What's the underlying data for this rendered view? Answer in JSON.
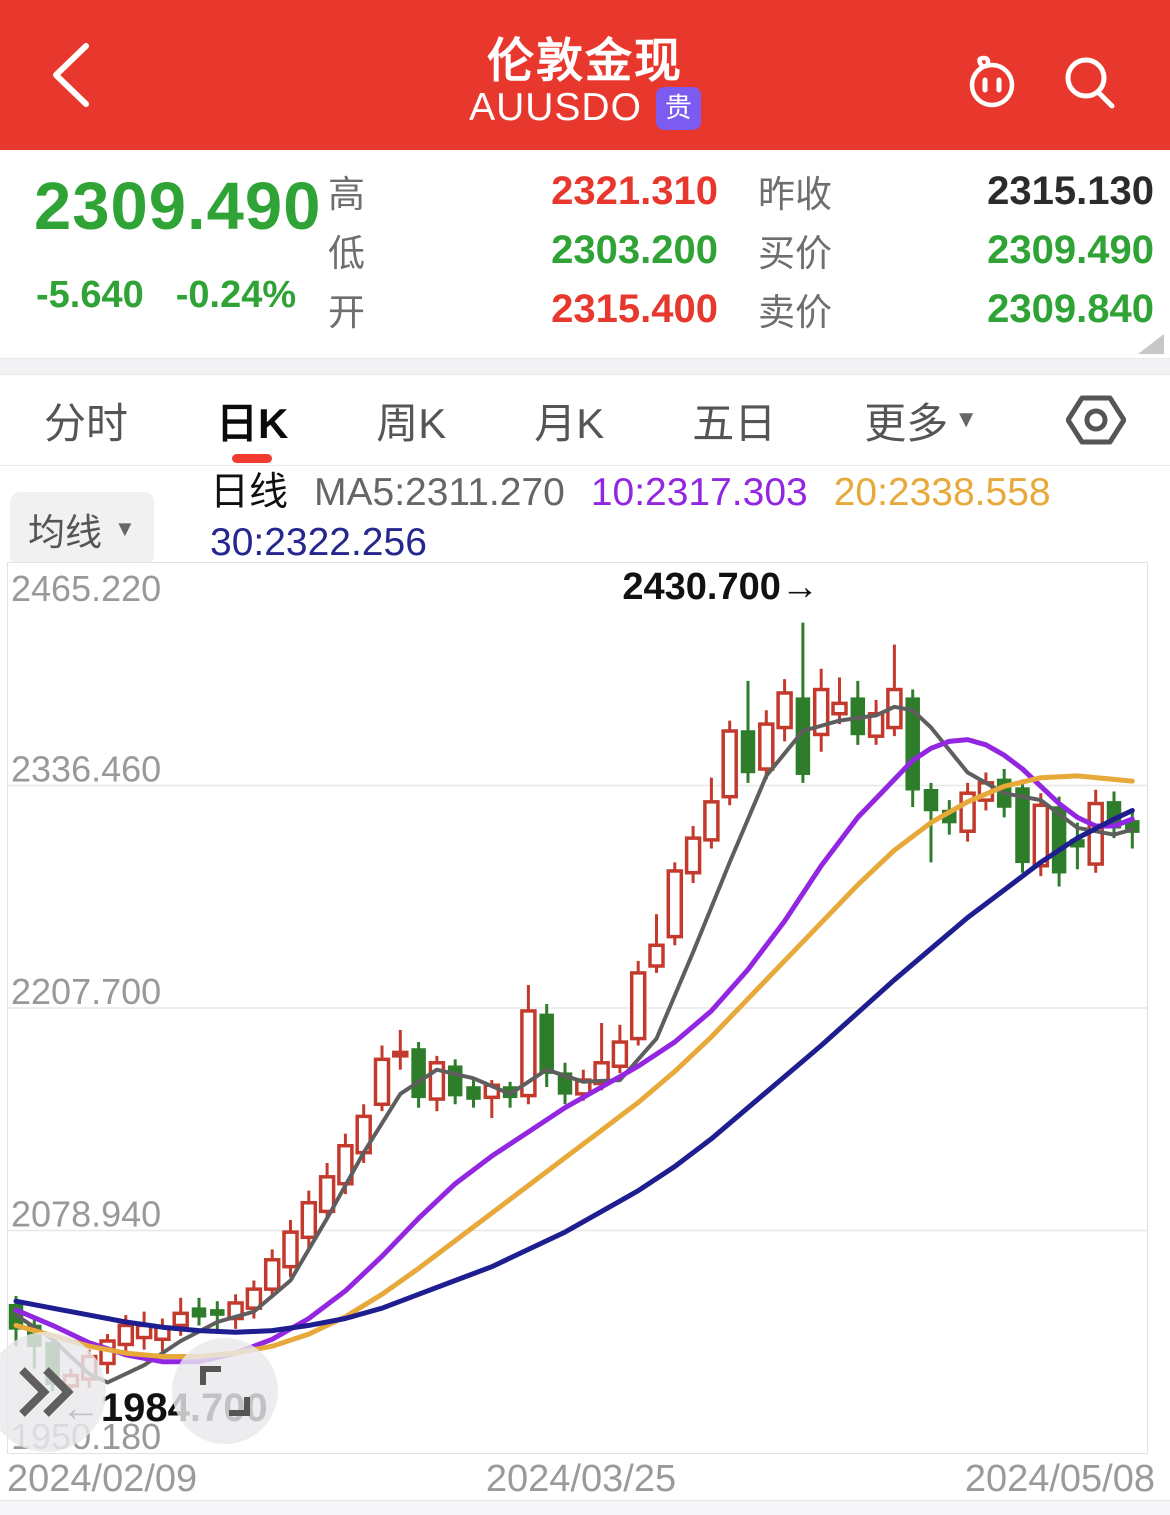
{
  "colors": {
    "header_bg": "#E8382E",
    "badge_bg": "#7C5CF0",
    "up": "#E8382E",
    "down": "#2FA336",
    "flat": "#2B2B2B",
    "candle_up": "#C33A2D",
    "candle_down": "#2E7D2A",
    "grid": "#E8E8E8",
    "axis_text": "#999999",
    "annotation": "#111111"
  },
  "header": {
    "title": "伦敦金现",
    "symbol": "AUUSDO",
    "badge": "贵"
  },
  "quote": {
    "last": "2309.490",
    "change": "-5.640",
    "change_pct": "-0.24%",
    "trend": "down",
    "mid_fields": [
      {
        "label": "高",
        "value": "2321.310",
        "trend": "up"
      },
      {
        "label": "低",
        "value": "2303.200",
        "trend": "down"
      },
      {
        "label": "开",
        "value": "2315.400",
        "trend": "up"
      }
    ],
    "right_fields": [
      {
        "label": "昨收",
        "value": "2315.130",
        "trend": "flat"
      },
      {
        "label": "买价",
        "value": "2309.490",
        "trend": "down"
      },
      {
        "label": "卖价",
        "value": "2309.840",
        "trend": "down"
      }
    ]
  },
  "tabs": {
    "items": [
      "分时",
      "日K",
      "周K",
      "月K",
      "五日",
      "更多"
    ],
    "active": "日K",
    "caret_on": "更多"
  },
  "legend": {
    "button": "均线",
    "period": "日线",
    "ma_items": [
      {
        "label": "MA5:2311.270",
        "color": "#666666"
      },
      {
        "label": "10:2317.303",
        "color": "#9326E0"
      },
      {
        "label": "20:2338.558",
        "color": "#E8A93B"
      },
      {
        "label": "30:2322.256",
        "color": "#26268F"
      }
    ]
  },
  "chart_data": {
    "type": "candlestick",
    "title": "伦敦金现 AUUSDO 日K",
    "y_min": 1950.18,
    "y_max": 2465.22,
    "y_ticks": [
      "2465.220",
      "2336.460",
      "2207.700",
      "2078.940",
      "1950.180"
    ],
    "x_tick_labels": [
      "2024/02/09",
      "2024/03/25",
      "2024/05/08"
    ],
    "annotations": {
      "high": {
        "text": "2430.700→",
        "candle_index": 43,
        "value": 2430.7
      },
      "low": {
        "text": "←1984.700",
        "candle_index": 3,
        "value": 1984.7
      }
    },
    "candles": [
      [
        2036,
        2041,
        2012,
        2022
      ],
      [
        2024,
        2028,
        1999,
        2012
      ],
      [
        2014,
        2018,
        1986,
        1990
      ],
      [
        1989,
        1999,
        1984.7,
        1995
      ],
      [
        1993,
        2010,
        1988,
        2006
      ],
      [
        2002,
        2019,
        1996,
        2015
      ],
      [
        2013,
        2030,
        2007,
        2024
      ],
      [
        2017,
        2032,
        2010,
        2024
      ],
      [
        2016,
        2028,
        2009,
        2023
      ],
      [
        2024,
        2040,
        2018,
        2031
      ],
      [
        2034,
        2040,
        2024,
        2029
      ],
      [
        2033,
        2038,
        2020,
        2030
      ],
      [
        2028,
        2042,
        2022,
        2037
      ],
      [
        2034,
        2050,
        2028,
        2045
      ],
      [
        2045,
        2068,
        2040,
        2062
      ],
      [
        2058,
        2085,
        2052,
        2078
      ],
      [
        2075,
        2102,
        2068,
        2095
      ],
      [
        2090,
        2118,
        2085,
        2110
      ],
      [
        2106,
        2135,
        2100,
        2128
      ],
      [
        2124,
        2152,
        2118,
        2145
      ],
      [
        2152,
        2186,
        2148,
        2178
      ],
      [
        2180,
        2195,
        2172,
        2182
      ],
      [
        2184,
        2188,
        2150,
        2156
      ],
      [
        2155,
        2180,
        2148,
        2176
      ],
      [
        2174,
        2178,
        2152,
        2157
      ],
      [
        2162,
        2166,
        2150,
        2155
      ],
      [
        2156,
        2166,
        2144,
        2163
      ],
      [
        2162,
        2165,
        2150,
        2156
      ],
      [
        2157,
        2221,
        2152,
        2206
      ],
      [
        2204,
        2210,
        2162,
        2170
      ],
      [
        2170,
        2176,
        2152,
        2158
      ],
      [
        2158,
        2172,
        2154,
        2166
      ],
      [
        2164,
        2199,
        2160,
        2176
      ],
      [
        2174,
        2198,
        2170,
        2188
      ],
      [
        2190,
        2235,
        2186,
        2228
      ],
      [
        2232,
        2262,
        2228,
        2244
      ],
      [
        2249,
        2292,
        2244,
        2287
      ],
      [
        2286,
        2313,
        2280,
        2306
      ],
      [
        2305,
        2341,
        2300,
        2327
      ],
      [
        2330,
        2374,
        2325,
        2368
      ],
      [
        2368,
        2397,
        2338,
        2344
      ],
      [
        2346,
        2380,
        2340,
        2372
      ],
      [
        2370,
        2398,
        2362,
        2390
      ],
      [
        2387,
        2430.7,
        2338,
        2343
      ],
      [
        2366,
        2404,
        2356,
        2392
      ],
      [
        2378,
        2399,
        2372,
        2384
      ],
      [
        2387,
        2397,
        2360,
        2366
      ],
      [
        2365,
        2386,
        2360,
        2378
      ],
      [
        2370,
        2418,
        2365,
        2392
      ],
      [
        2387,
        2392,
        2324,
        2334
      ],
      [
        2334,
        2338,
        2292,
        2322
      ],
      [
        2322,
        2328,
        2308,
        2315
      ],
      [
        2310,
        2338,
        2304,
        2332
      ],
      [
        2328,
        2344,
        2322,
        2338
      ],
      [
        2340,
        2346,
        2318,
        2324
      ],
      [
        2335,
        2340,
        2286,
        2292
      ],
      [
        2290,
        2332,
        2284,
        2325
      ],
      [
        2324,
        2330,
        2278,
        2286
      ],
      [
        2305,
        2315,
        2288,
        2301
      ],
      [
        2291,
        2334,
        2286,
        2326
      ],
      [
        2327,
        2333,
        2306,
        2312
      ],
      [
        2316,
        2322,
        2300,
        2309.49
      ]
    ],
    "ma_series": [
      {
        "name": "MA5",
        "color": "#5E5E5E",
        "width": 4,
        "points": [
          [
            0,
            2030
          ],
          [
            2,
            2016
          ],
          [
            4,
            1996
          ],
          [
            5,
            1991
          ],
          [
            7,
            2001
          ],
          [
            9,
            2015
          ],
          [
            11,
            2026
          ],
          [
            13,
            2032
          ],
          [
            15,
            2050
          ],
          [
            17,
            2086
          ],
          [
            19,
            2124
          ],
          [
            21,
            2158
          ],
          [
            23,
            2172
          ],
          [
            25,
            2167
          ],
          [
            27,
            2158
          ],
          [
            29,
            2172
          ],
          [
            31,
            2165
          ],
          [
            33,
            2166
          ],
          [
            35,
            2190
          ],
          [
            37,
            2240
          ],
          [
            39,
            2292
          ],
          [
            41,
            2342
          ],
          [
            43,
            2368
          ],
          [
            45,
            2374
          ],
          [
            47,
            2377
          ],
          [
            48,
            2382
          ],
          [
            49,
            2380
          ],
          [
            50,
            2370
          ],
          [
            52,
            2344
          ],
          [
            54,
            2332
          ],
          [
            56,
            2328
          ],
          [
            58,
            2312
          ],
          [
            60,
            2308
          ],
          [
            61,
            2311
          ]
        ]
      },
      {
        "name": "MA10",
        "color": "#9326E0",
        "width": 5,
        "points": [
          [
            0,
            2033
          ],
          [
            2,
            2024
          ],
          [
            4,
            2014
          ],
          [
            6,
            2007
          ],
          [
            8,
            2003
          ],
          [
            10,
            2003
          ],
          [
            12,
            2008
          ],
          [
            14,
            2016
          ],
          [
            16,
            2028
          ],
          [
            18,
            2044
          ],
          [
            20,
            2064
          ],
          [
            22,
            2086
          ],
          [
            24,
            2106
          ],
          [
            26,
            2122
          ],
          [
            28,
            2136
          ],
          [
            30,
            2150
          ],
          [
            32,
            2162
          ],
          [
            34,
            2174
          ],
          [
            36,
            2188
          ],
          [
            38,
            2206
          ],
          [
            40,
            2230
          ],
          [
            42,
            2258
          ],
          [
            44,
            2290
          ],
          [
            46,
            2318
          ],
          [
            48,
            2340
          ],
          [
            49,
            2351
          ],
          [
            50,
            2358
          ],
          [
            51,
            2362
          ],
          [
            52,
            2363
          ],
          [
            53,
            2360
          ],
          [
            54,
            2354
          ],
          [
            55,
            2346
          ],
          [
            56,
            2336
          ],
          [
            57,
            2326
          ],
          [
            58,
            2318
          ],
          [
            59,
            2313
          ],
          [
            60,
            2313
          ],
          [
            61,
            2317
          ]
        ]
      },
      {
        "name": "MA20",
        "color": "#E8A93B",
        "width": 5,
        "points": [
          [
            0,
            2024
          ],
          [
            2,
            2018
          ],
          [
            4,
            2012
          ],
          [
            6,
            2008
          ],
          [
            8,
            2006
          ],
          [
            10,
            2006
          ],
          [
            12,
            2008
          ],
          [
            14,
            2012
          ],
          [
            16,
            2019
          ],
          [
            18,
            2029
          ],
          [
            20,
            2042
          ],
          [
            22,
            2057
          ],
          [
            24,
            2073
          ],
          [
            26,
            2089
          ],
          [
            28,
            2105
          ],
          [
            30,
            2121
          ],
          [
            32,
            2137
          ],
          [
            34,
            2153
          ],
          [
            36,
            2171
          ],
          [
            38,
            2191
          ],
          [
            40,
            2213
          ],
          [
            42,
            2235
          ],
          [
            44,
            2257
          ],
          [
            46,
            2279
          ],
          [
            48,
            2299
          ],
          [
            50,
            2315
          ],
          [
            52,
            2327
          ],
          [
            54,
            2336
          ],
          [
            56,
            2341
          ],
          [
            58,
            2342
          ],
          [
            60,
            2340
          ],
          [
            61,
            2339
          ]
        ]
      },
      {
        "name": "MA30",
        "color": "#1E1E90",
        "width": 5,
        "points": [
          [
            0,
            2038
          ],
          [
            2,
            2034
          ],
          [
            4,
            2030
          ],
          [
            6,
            2026
          ],
          [
            8,
            2023
          ],
          [
            10,
            2021
          ],
          [
            12,
            2020
          ],
          [
            14,
            2021
          ],
          [
            16,
            2024
          ],
          [
            18,
            2028
          ],
          [
            20,
            2034
          ],
          [
            22,
            2042
          ],
          [
            24,
            2050
          ],
          [
            26,
            2058
          ],
          [
            28,
            2068
          ],
          [
            30,
            2078
          ],
          [
            32,
            2090
          ],
          [
            34,
            2102
          ],
          [
            36,
            2116
          ],
          [
            38,
            2132
          ],
          [
            40,
            2150
          ],
          [
            42,
            2168
          ],
          [
            44,
            2186
          ],
          [
            46,
            2205
          ],
          [
            48,
            2224
          ],
          [
            50,
            2242
          ],
          [
            52,
            2260
          ],
          [
            54,
            2276
          ],
          [
            56,
            2292
          ],
          [
            58,
            2306
          ],
          [
            60,
            2317
          ],
          [
            61,
            2322
          ]
        ]
      }
    ]
  }
}
